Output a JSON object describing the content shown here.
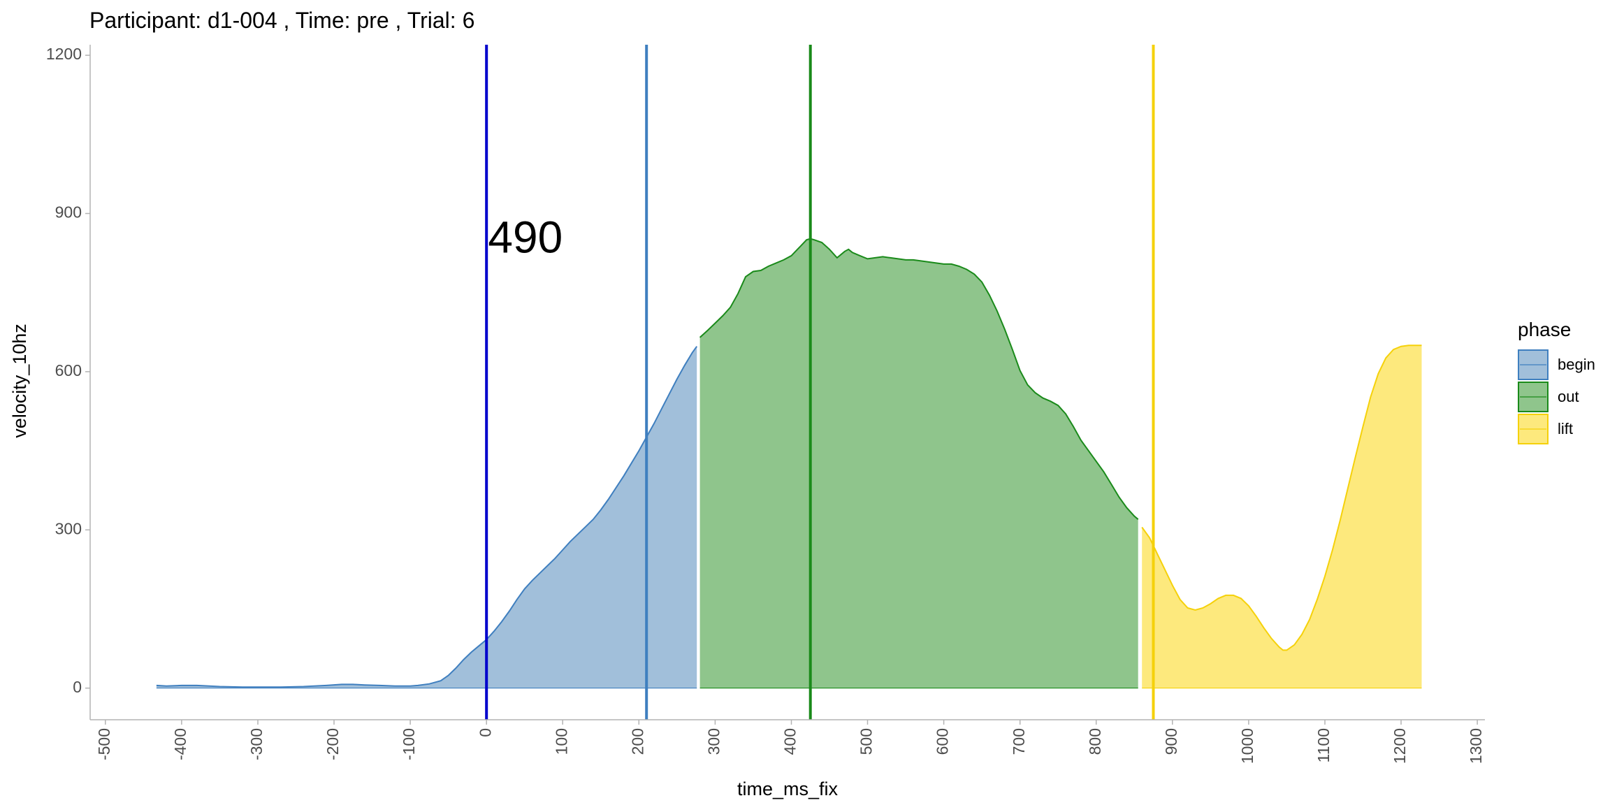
{
  "chart_data": {
    "type": "area",
    "title": "Participant:  d1-004 , Time: pre , Trial:  6",
    "xlabel": "time_ms_fix",
    "ylabel": "velocity_10hz",
    "xlim": [
      -520,
      1310
    ],
    "ylim": [
      -60,
      1220
    ],
    "x_ticks": [
      -500,
      -400,
      -300,
      -200,
      -100,
      0,
      100,
      200,
      300,
      400,
      500,
      600,
      700,
      800,
      900,
      1000,
      1100,
      1200,
      1300
    ],
    "y_ticks": [
      0,
      300,
      600,
      900,
      1200
    ],
    "grid": false,
    "legend": {
      "title": "phase",
      "position": "right",
      "entries": [
        {
          "label": "begin",
          "fill": "#a1bfda",
          "stroke": "#3f7fbf"
        },
        {
          "label": "out",
          "fill": "#8fc58c",
          "stroke": "#1a8a1a"
        },
        {
          "label": "lift",
          "fill": "#fde97d",
          "stroke": "#f5d10a"
        }
      ]
    },
    "series": [
      {
        "name": "begin",
        "fill": "#a1bfda",
        "stroke": "#3f7fbf",
        "x": [
          -433,
          -420,
          -400,
          -380,
          -350,
          -320,
          -300,
          -270,
          -240,
          -210,
          -190,
          -175,
          -160,
          -140,
          -120,
          -100,
          -90,
          -75,
          -60,
          -50,
          -40,
          -30,
          -20,
          -10,
          0,
          10,
          20,
          30,
          40,
          50,
          60,
          70,
          80,
          90,
          100,
          110,
          120,
          130,
          140,
          150,
          160,
          170,
          180,
          190,
          200,
          210,
          220,
          230,
          240,
          250,
          260,
          270,
          276
        ],
        "y": [
          5,
          4,
          5,
          5,
          3,
          2,
          2,
          2,
          3,
          5,
          7,
          7,
          6,
          5,
          4,
          4,
          5,
          8,
          14,
          24,
          38,
          54,
          68,
          80,
          92,
          108,
          126,
          146,
          168,
          188,
          204,
          218,
          232,
          246,
          262,
          278,
          292,
          306,
          320,
          338,
          358,
          380,
          402,
          426,
          450,
          476,
          502,
          530,
          558,
          586,
          612,
          636,
          648
        ]
      },
      {
        "name": "out",
        "fill": "#8fc58c",
        "stroke": "#1a8a1a",
        "x": [
          280,
          290,
          300,
          310,
          320,
          330,
          340,
          350,
          360,
          370,
          380,
          390,
          400,
          410,
          420,
          425,
          430,
          440,
          450,
          460,
          470,
          475,
          480,
          490,
          500,
          510,
          520,
          530,
          540,
          550,
          560,
          570,
          580,
          590,
          600,
          610,
          620,
          630,
          640,
          650,
          660,
          670,
          680,
          690,
          700,
          710,
          720,
          730,
          740,
          750,
          760,
          770,
          780,
          790,
          800,
          810,
          820,
          830,
          840,
          850,
          855
        ],
        "y": [
          665,
          678,
          692,
          706,
          722,
          748,
          780,
          790,
          792,
          800,
          806,
          812,
          820,
          835,
          850,
          852,
          850,
          845,
          832,
          816,
          828,
          832,
          826,
          820,
          814,
          816,
          818,
          816,
          814,
          812,
          812,
          810,
          808,
          806,
          804,
          804,
          800,
          794,
          785,
          770,
          745,
          715,
          680,
          642,
          602,
          575,
          560,
          550,
          544,
          536,
          520,
          496,
          470,
          450,
          430,
          410,
          386,
          362,
          342,
          326,
          320
        ]
      },
      {
        "name": "lift",
        "fill": "#fde97d",
        "stroke": "#f5d10a",
        "x": [
          860,
          870,
          880,
          890,
          900,
          910,
          920,
          930,
          940,
          950,
          960,
          970,
          980,
          990,
          1000,
          1010,
          1020,
          1030,
          1040,
          1045,
          1050,
          1060,
          1070,
          1080,
          1090,
          1100,
          1110,
          1120,
          1130,
          1140,
          1150,
          1160,
          1170,
          1180,
          1190,
          1200,
          1210,
          1215,
          1220,
          1227
        ],
        "y": [
          305,
          285,
          255,
          225,
          195,
          168,
          152,
          148,
          152,
          160,
          170,
          176,
          176,
          170,
          156,
          136,
          114,
          94,
          78,
          72,
          72,
          82,
          102,
          130,
          168,
          212,
          262,
          318,
          378,
          438,
          496,
          552,
          596,
          626,
          642,
          648,
          650,
          650,
          650,
          650
        ]
      }
    ],
    "vlines": [
      {
        "x": 0,
        "color": "#0000cc"
      },
      {
        "x": 210,
        "color": "#3f7fbf"
      },
      {
        "x": 425,
        "color": "#1a8a1a"
      },
      {
        "x": 875,
        "color": "#f5d10a"
      }
    ],
    "annotations": [
      {
        "text": "490",
        "x": 2,
        "y": 848
      }
    ]
  }
}
